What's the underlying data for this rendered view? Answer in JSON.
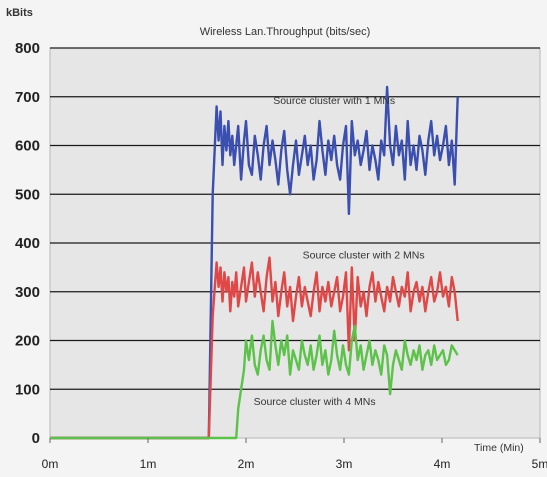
{
  "chart_data": {
    "type": "line",
    "title": "Wireless Lan.Throughput (bits/sec)",
    "ylabel": "kBits",
    "xlabel": "Time (Min)",
    "xlim": [
      0,
      5
    ],
    "ylim": [
      0,
      800
    ],
    "x_ticks": [
      {
        "value": 0,
        "label": "0m"
      },
      {
        "value": 1,
        "label": "1m"
      },
      {
        "value": 2,
        "label": "2m"
      },
      {
        "value": 3,
        "label": "3m"
      },
      {
        "value": 4,
        "label": "4m"
      },
      {
        "value": 5,
        "label": "5m"
      }
    ],
    "y_ticks": [
      {
        "value": 0,
        "label": "0"
      },
      {
        "value": 100,
        "label": "100"
      },
      {
        "value": 200,
        "label": "200"
      },
      {
        "value": 300,
        "label": "300"
      },
      {
        "value": 400,
        "label": "400"
      },
      {
        "value": 500,
        "label": "500"
      },
      {
        "value": 600,
        "label": "600"
      },
      {
        "value": 700,
        "label": "700"
      },
      {
        "value": 800,
        "label": "800"
      }
    ],
    "grid": "horizontal",
    "background": "#e6e6e6",
    "series": [
      {
        "name": "Source cluster with 1 MNs",
        "color": "#3a4fb0",
        "x": [
          0,
          1.62,
          1.66,
          1.7,
          1.72,
          1.74,
          1.76,
          1.78,
          1.8,
          1.82,
          1.84,
          1.86,
          1.88,
          1.9,
          1.92,
          1.95,
          1.98,
          2.0,
          2.03,
          2.06,
          2.09,
          2.12,
          2.15,
          2.18,
          2.21,
          2.24,
          2.27,
          2.3,
          2.33,
          2.36,
          2.39,
          2.42,
          2.45,
          2.48,
          2.51,
          2.54,
          2.57,
          2.6,
          2.63,
          2.66,
          2.69,
          2.72,
          2.75,
          2.78,
          2.81,
          2.84,
          2.87,
          2.9,
          2.93,
          2.96,
          2.99,
          3.02,
          3.05,
          3.08,
          3.11,
          3.14,
          3.17,
          3.2,
          3.23,
          3.26,
          3.29,
          3.32,
          3.35,
          3.38,
          3.41,
          3.44,
          3.47,
          3.5,
          3.53,
          3.56,
          3.59,
          3.62,
          3.65,
          3.68,
          3.71,
          3.74,
          3.77,
          3.8,
          3.83,
          3.86,
          3.89,
          3.92,
          3.95,
          3.98,
          4.01,
          4.04,
          4.07,
          4.1,
          4.13,
          4.16
        ],
        "y": [
          0,
          0,
          500,
          680,
          610,
          670,
          560,
          640,
          590,
          650,
          580,
          620,
          560,
          600,
          640,
          530,
          610,
          650,
          560,
          540,
          620,
          580,
          530,
          600,
          640,
          560,
          610,
          570,
          520,
          590,
          630,
          550,
          500,
          560,
          610,
          540,
          580,
          620,
          560,
          600,
          530,
          570,
          650,
          590,
          540,
          610,
          570,
          620,
          560,
          530,
          600,
          640,
          460,
          650,
          580,
          610,
          560,
          590,
          630,
          550,
          600,
          570,
          530,
          610,
          580,
          720,
          600,
          560,
          640,
          580,
          610,
          530,
          650,
          560,
          600,
          550,
          620,
          590,
          540,
          610,
          650,
          580,
          620,
          570,
          600,
          640,
          560,
          610,
          520,
          700
        ]
      },
      {
        "name": "Source cluster with 2 MNs",
        "color": "#e04848",
        "x": [
          0,
          1.62,
          1.66,
          1.7,
          1.72,
          1.74,
          1.76,
          1.78,
          1.8,
          1.82,
          1.84,
          1.86,
          1.88,
          1.9,
          1.92,
          1.95,
          1.98,
          2.0,
          2.03,
          2.06,
          2.09,
          2.12,
          2.15,
          2.18,
          2.21,
          2.24,
          2.27,
          2.3,
          2.33,
          2.36,
          2.39,
          2.42,
          2.45,
          2.48,
          2.51,
          2.54,
          2.57,
          2.6,
          2.63,
          2.66,
          2.69,
          2.72,
          2.75,
          2.78,
          2.81,
          2.84,
          2.87,
          2.9,
          2.93,
          2.96,
          2.99,
          3.02,
          3.05,
          3.08,
          3.11,
          3.14,
          3.17,
          3.2,
          3.23,
          3.26,
          3.29,
          3.32,
          3.35,
          3.38,
          3.41,
          3.44,
          3.47,
          3.5,
          3.53,
          3.56,
          3.59,
          3.62,
          3.65,
          3.68,
          3.71,
          3.74,
          3.77,
          3.8,
          3.83,
          3.86,
          3.89,
          3.92,
          3.95,
          3.98,
          4.01,
          4.04,
          4.07,
          4.1,
          4.13,
          4.16
        ],
        "y": [
          0,
          0,
          250,
          360,
          310,
          350,
          280,
          340,
          300,
          330,
          260,
          320,
          290,
          340,
          270,
          310,
          350,
          280,
          320,
          360,
          290,
          340,
          300,
          260,
          330,
          370,
          280,
          320,
          250,
          300,
          340,
          270,
          310,
          240,
          290,
          330,
          270,
          310,
          280,
          250,
          300,
          340,
          260,
          310,
          280,
          320,
          270,
          300,
          330,
          260,
          290,
          340,
          180,
          350,
          200,
          330,
          270,
          300,
          250,
          310,
          340,
          280,
          320,
          290,
          260,
          310,
          280,
          330,
          300,
          270,
          310,
          290,
          340,
          260,
          300,
          320,
          280,
          310,
          260,
          300,
          330,
          280,
          300,
          340,
          290,
          310,
          270,
          330,
          300,
          240
        ]
      },
      {
        "name": "Source cluster with 4 MNs",
        "color": "#5cc24a",
        "x": [
          0,
          1.62,
          1.66,
          1.7,
          1.74,
          1.78,
          1.82,
          1.86,
          1.9,
          1.92,
          1.95,
          1.98,
          2.0,
          2.03,
          2.06,
          2.09,
          2.12,
          2.15,
          2.18,
          2.21,
          2.24,
          2.27,
          2.3,
          2.33,
          2.36,
          2.39,
          2.42,
          2.45,
          2.48,
          2.51,
          2.54,
          2.57,
          2.6,
          2.63,
          2.66,
          2.69,
          2.72,
          2.75,
          2.78,
          2.81,
          2.84,
          2.87,
          2.9,
          2.93,
          2.96,
          2.99,
          3.02,
          3.05,
          3.08,
          3.11,
          3.14,
          3.17,
          3.2,
          3.23,
          3.26,
          3.29,
          3.32,
          3.35,
          3.38,
          3.41,
          3.44,
          3.47,
          3.5,
          3.53,
          3.56,
          3.59,
          3.62,
          3.65,
          3.68,
          3.71,
          3.74,
          3.77,
          3.8,
          3.83,
          3.86,
          3.89,
          3.92,
          3.95,
          3.98,
          4.01,
          4.04,
          4.07,
          4.1,
          4.13,
          4.16
        ],
        "y": [
          0,
          0,
          0,
          0,
          0,
          0,
          0,
          0,
          0,
          60,
          100,
          140,
          200,
          160,
          210,
          150,
          130,
          180,
          210,
          160,
          140,
          240,
          190,
          150,
          200,
          170,
          210,
          130,
          180,
          160,
          140,
          200,
          170,
          150,
          190,
          140,
          170,
          210,
          150,
          180,
          130,
          160,
          220,
          170,
          140,
          190,
          150,
          130,
          200,
          230,
          160,
          190,
          140,
          170,
          200,
          150,
          180,
          160,
          130,
          190,
          170,
          90,
          150,
          180,
          160,
          140,
          200,
          170,
          150,
          180,
          160,
          190,
          140,
          170,
          180,
          150,
          190,
          160,
          170,
          180,
          150,
          160,
          190,
          180,
          170
        ]
      }
    ],
    "series_labels": [
      {
        "series": 0,
        "x": 2.9,
        "y": 685
      },
      {
        "series": 1,
        "x": 3.2,
        "y": 368
      },
      {
        "series": 2,
        "x": 2.7,
        "y": 68
      }
    ]
  }
}
